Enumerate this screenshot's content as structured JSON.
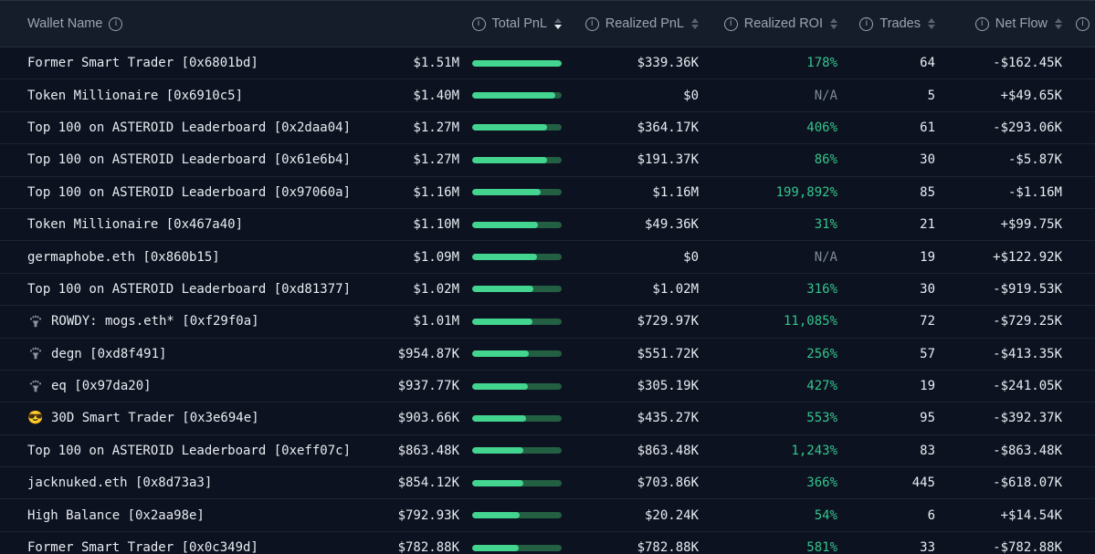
{
  "theme": {
    "bg": "#0c1220",
    "header_bg": "#151d2a",
    "row_border": "#1b2531",
    "text_primary": "#e8ecf1",
    "text_muted": "#9aa4b4",
    "green": "#35c48d",
    "na_gray": "#7f8a99",
    "bar_fill": "#43d48f",
    "bar_track": "#235f42"
  },
  "header": {
    "wallet_name": "Wallet Name",
    "total_pnl": "Total PnL",
    "realized_pnl": "Realized PnL",
    "realized_roi": "Realized ROI",
    "trades": "Trades",
    "net_flow": "Net Flow",
    "sort_column": "total_pnl",
    "sort_direction": "desc"
  },
  "rows": [
    {
      "icon": null,
      "name": "Former Smart Trader [0x6801bd]",
      "total_pnl": "$1.51M",
      "bar_pct": 100,
      "realized_pnl": "$339.36K",
      "realized_roi": "178%",
      "roi_na": false,
      "trades": "64",
      "net_flow": "-$162.45K"
    },
    {
      "icon": null,
      "name": "Token Millionaire [0x6910c5]",
      "total_pnl": "$1.40M",
      "bar_pct": 93,
      "realized_pnl": "$0",
      "realized_roi": "N/A",
      "roi_na": true,
      "trades": "5",
      "net_flow": "+$49.65K"
    },
    {
      "icon": null,
      "name": "Top 100 on ASTEROID Leaderboard [0x2daa04]",
      "total_pnl": "$1.27M",
      "bar_pct": 84,
      "realized_pnl": "$364.17K",
      "realized_roi": "406%",
      "roi_na": false,
      "trades": "61",
      "net_flow": "-$293.06K"
    },
    {
      "icon": null,
      "name": "Top 100 on ASTEROID Leaderboard [0x61e6b4]",
      "total_pnl": "$1.27M",
      "bar_pct": 84,
      "realized_pnl": "$191.37K",
      "realized_roi": "86%",
      "roi_na": false,
      "trades": "30",
      "net_flow": "-$5.87K"
    },
    {
      "icon": null,
      "name": "Top 100 on ASTEROID Leaderboard [0x97060a]",
      "total_pnl": "$1.16M",
      "bar_pct": 77,
      "realized_pnl": "$1.16M",
      "realized_roi": "199,892%",
      "roi_na": false,
      "trades": "85",
      "net_flow": "-$1.16M"
    },
    {
      "icon": null,
      "name": "Token Millionaire [0x467a40]",
      "total_pnl": "$1.10M",
      "bar_pct": 73,
      "realized_pnl": "$49.36K",
      "realized_roi": "31%",
      "roi_na": false,
      "trades": "21",
      "net_flow": "+$99.75K"
    },
    {
      "icon": null,
      "name": "germaphobe.eth [0x860b15]",
      "total_pnl": "$1.09M",
      "bar_pct": 72,
      "realized_pnl": "$0",
      "realized_roi": "N/A",
      "roi_na": true,
      "trades": "19",
      "net_flow": "+$122.92K"
    },
    {
      "icon": null,
      "name": "Top 100 on ASTEROID Leaderboard [0xd81377]",
      "total_pnl": "$1.02M",
      "bar_pct": 68,
      "realized_pnl": "$1.02M",
      "realized_roi": "316%",
      "roi_na": false,
      "trades": "30",
      "net_flow": "-$919.53K"
    },
    {
      "icon": "magic-trick",
      "name": "ROWDY: mogs.eth* [0xf29f0a]",
      "total_pnl": "$1.01M",
      "bar_pct": 67,
      "realized_pnl": "$729.97K",
      "realized_roi": "11,085%",
      "roi_na": false,
      "trades": "72",
      "net_flow": "-$729.25K"
    },
    {
      "icon": "magic-trick",
      "name": "degn [0xd8f491]",
      "total_pnl": "$954.87K",
      "bar_pct": 63,
      "realized_pnl": "$551.72K",
      "realized_roi": "256%",
      "roi_na": false,
      "trades": "57",
      "net_flow": "-$413.35K"
    },
    {
      "icon": "magic-trick",
      "name": "eq [0x97da20]",
      "total_pnl": "$937.77K",
      "bar_pct": 62,
      "realized_pnl": "$305.19K",
      "realized_roi": "427%",
      "roi_na": false,
      "trades": "19",
      "net_flow": "-$241.05K"
    },
    {
      "icon": "sunglasses",
      "name": "30D Smart Trader [0x3e694e]",
      "total_pnl": "$903.66K",
      "bar_pct": 60,
      "realized_pnl": "$435.27K",
      "realized_roi": "553%",
      "roi_na": false,
      "trades": "95",
      "net_flow": "-$392.37K"
    },
    {
      "icon": null,
      "name": "Top 100 on ASTEROID Leaderboard [0xeff07c]",
      "total_pnl": "$863.48K",
      "bar_pct": 57,
      "realized_pnl": "$863.48K",
      "realized_roi": "1,243%",
      "roi_na": false,
      "trades": "83",
      "net_flow": "-$863.48K"
    },
    {
      "icon": null,
      "name": "jacknuked.eth [0x8d73a3]",
      "total_pnl": "$854.12K",
      "bar_pct": 57,
      "realized_pnl": "$703.86K",
      "realized_roi": "366%",
      "roi_na": false,
      "trades": "445",
      "net_flow": "-$618.07K"
    },
    {
      "icon": null,
      "name": "High Balance [0x2aa98e]",
      "total_pnl": "$792.93K",
      "bar_pct": 53,
      "realized_pnl": "$20.24K",
      "realized_roi": "54%",
      "roi_na": false,
      "trades": "6",
      "net_flow": "+$14.54K"
    },
    {
      "icon": null,
      "name": "Former Smart Trader [0x0c349d]",
      "total_pnl": "$782.88K",
      "bar_pct": 52,
      "realized_pnl": "$782.88K",
      "realized_roi": "581%",
      "roi_na": false,
      "trades": "33",
      "net_flow": "-$782.88K"
    }
  ]
}
